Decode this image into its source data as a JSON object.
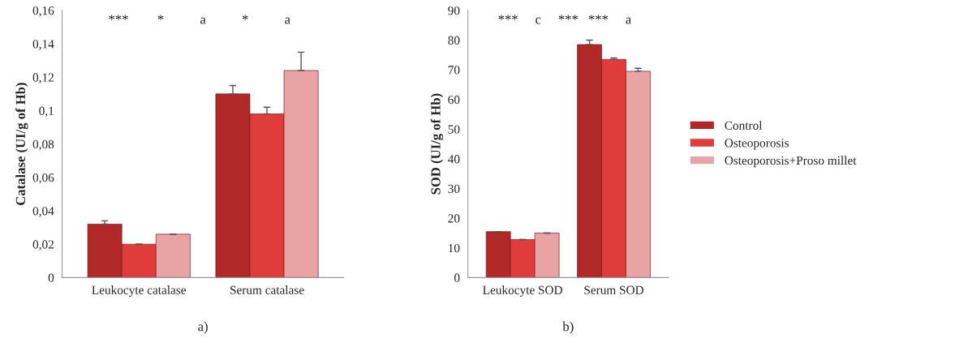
{
  "chart_data": [
    {
      "type": "bar",
      "ylabel": "Catalase (UI/g of Hb)",
      "xlabel": "a)",
      "categories": [
        "Leukocyte catalase",
        "Serum catalase"
      ],
      "series": [
        {
          "color": "#b02828",
          "values": [
            0.032,
            0.11
          ],
          "errors": [
            0.002,
            0.005
          ]
        },
        {
          "color": "#e03c3c",
          "values": [
            0.02,
            0.098
          ],
          "errors": [
            null,
            0.004
          ]
        },
        {
          "color": "#e8a4a4",
          "values": [
            0.026,
            0.124
          ],
          "errors": [
            null,
            0.011
          ]
        }
      ],
      "ylim": [
        0,
        0.16
      ],
      "yticks": [
        0,
        {
          "value": 0.02,
          "label": "0,02"
        },
        {
          "value": 0.04,
          "label": "0,04"
        },
        {
          "value": 0.06,
          "label": "0,06"
        },
        {
          "value": 0.08,
          "label": "0,08"
        },
        {
          "value": 0.1,
          "label": "0,1"
        },
        {
          "value": 0.12,
          "label": "0,12"
        },
        {
          "value": 0.14,
          "label": "0,14"
        },
        {
          "value": 0.16,
          "label": "0,16"
        }
      ],
      "grid": false,
      "legend": false,
      "annotations": [
        "***",
        "*",
        "a",
        "*",
        "a"
      ]
    },
    {
      "type": "bar",
      "ylabel": "SOD (UI/g of Hb)",
      "xlabel": "b)",
      "categories": [
        "Leukocyte SOD",
        "Serum SOD"
      ],
      "series": [
        {
          "name": "Control",
          "color": "#b02828",
          "values": [
            15.5,
            78.5
          ],
          "errors": [
            null,
            1.5
          ]
        },
        {
          "name": "Osteoporosis",
          "color": "#e03c3c",
          "values": [
            12.8,
            73.5
          ],
          "errors": [
            null,
            0.5
          ]
        },
        {
          "name": "Osteoporosis+Proso millet",
          "color": "#e8a4a4",
          "values": [
            15.0,
            69.5
          ],
          "errors": [
            null,
            1.0
          ]
        }
      ],
      "ylim": [
        0,
        90
      ],
      "yticks": [
        0,
        10,
        20,
        30,
        40,
        50,
        60,
        70,
        80,
        90
      ],
      "grid": false,
      "legend": "right",
      "annotations": [
        "***",
        "c",
        "***",
        "***",
        "a"
      ]
    }
  ]
}
